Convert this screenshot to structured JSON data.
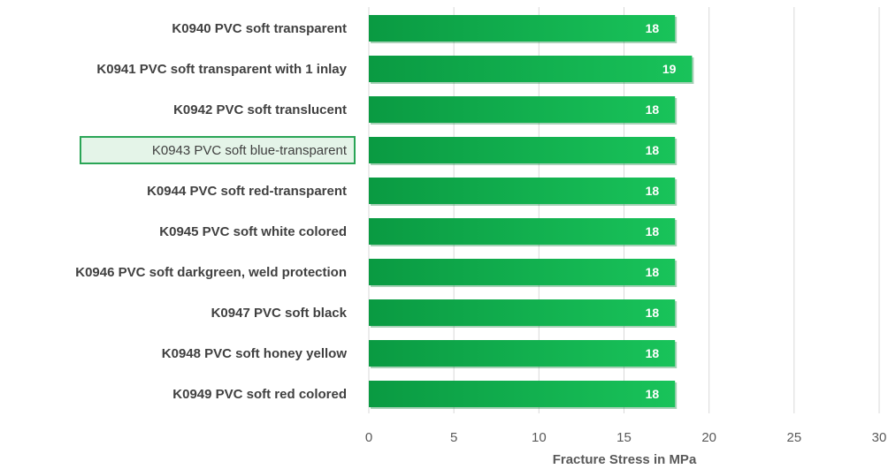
{
  "chart_data": {
    "type": "bar",
    "orientation": "horizontal",
    "categories": [
      "K0940 PVC soft transparent",
      "K0941 PVC soft transparent with 1 inlay",
      "K0942 PVC soft translucent",
      "K0943 PVC soft blue-transparent",
      "K0944 PVC soft red-transparent",
      "K0945 PVC soft white colored",
      "K0946 PVC soft darkgreen, weld protection",
      "K0947 PVC soft black",
      "K0948 PVC soft honey yellow",
      "K0949 PVC soft red colored"
    ],
    "values": [
      18,
      19,
      18,
      18,
      18,
      18,
      18,
      18,
      18,
      18
    ],
    "data_labels": [
      "18",
      "19",
      "18",
      "18",
      "18",
      "18",
      "18",
      "18",
      "18",
      "18"
    ],
    "xlabel": "Fracture Stress in MPa",
    "ylabel": "",
    "xlim": [
      0,
      30
    ],
    "xticks": [
      0,
      5,
      10,
      15,
      20,
      25,
      30
    ],
    "xtick_labels": [
      "0",
      "5",
      "10",
      "15",
      "20",
      "25",
      "30"
    ],
    "highlighted_category": "K0943 PVC soft blue-transparent",
    "grid": "vertical",
    "colors": {
      "bar_light": "#19c35a",
      "bar_dark": "#0a9a42",
      "bar_shadow": "#057a32",
      "grid": "#d9d9d9",
      "highlight_fill": "#e4f4e8",
      "highlight_border": "#2aa556",
      "label_text": "#404040",
      "tick_text": "#595959",
      "data_label_text": "#ffffff"
    }
  }
}
